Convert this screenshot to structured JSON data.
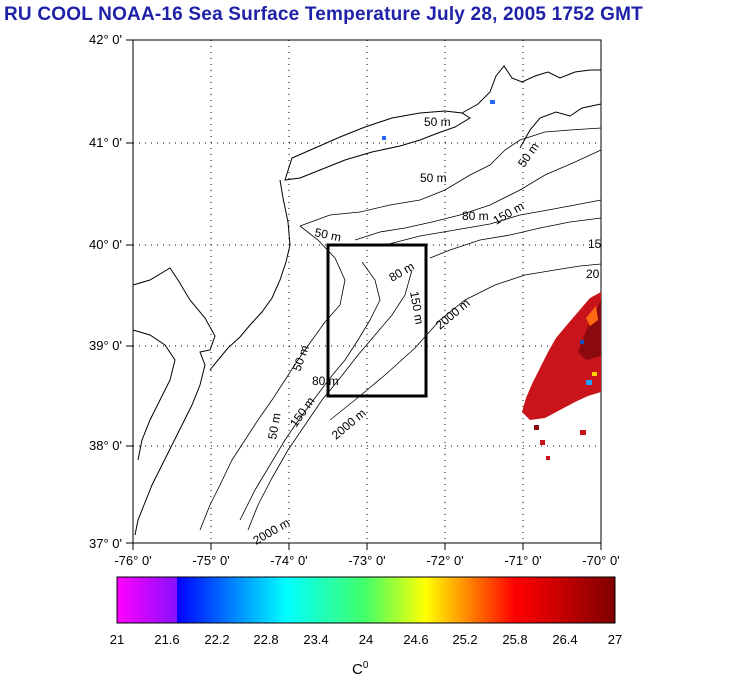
{
  "title": "RU COOL  NOAA-16 Sea Surface Temperature July 28, 2005 1752 GMT",
  "map": {
    "lon_range": [
      -76,
      -70
    ],
    "lat_range": [
      37,
      42
    ],
    "lat_labels": [
      "42° 0'",
      "41° 0'",
      "40° 0'",
      "39° 0'",
      "38° 0'",
      "37° 0'"
    ],
    "lon_labels": [
      "-76° 0'",
      "-75° 0'",
      "-74° 0'",
      "-73° 0'",
      "-72° 0'",
      "-71° 0'",
      "-70° 0'"
    ],
    "study_box": {
      "lon": [
        -73.45,
        -72.45
      ],
      "lat": [
        38.5,
        40.0
      ]
    },
    "contour_labels": [
      "50 m",
      "50 m",
      "50 m",
      "50 m",
      "50 m",
      "50 m",
      "80 m",
      "80 m",
      "80 m",
      "150 m",
      "150 m",
      "150 m",
      "2000 m",
      "2000 m",
      "2000 m",
      "15",
      "20"
    ]
  },
  "colorbar": {
    "min": 21,
    "max": 27,
    "ticks": [
      "21",
      "21.6",
      "22.2",
      "22.8",
      "23.4",
      "24",
      "24.6",
      "25.2",
      "25.8",
      "26.4",
      "27"
    ],
    "unit": "C",
    "unit_sup": "0",
    "colors": [
      "#ff00ff",
      "#0000ff",
      "#00ffff",
      "#ffff00",
      "#ff0000",
      "#800000"
    ]
  }
}
